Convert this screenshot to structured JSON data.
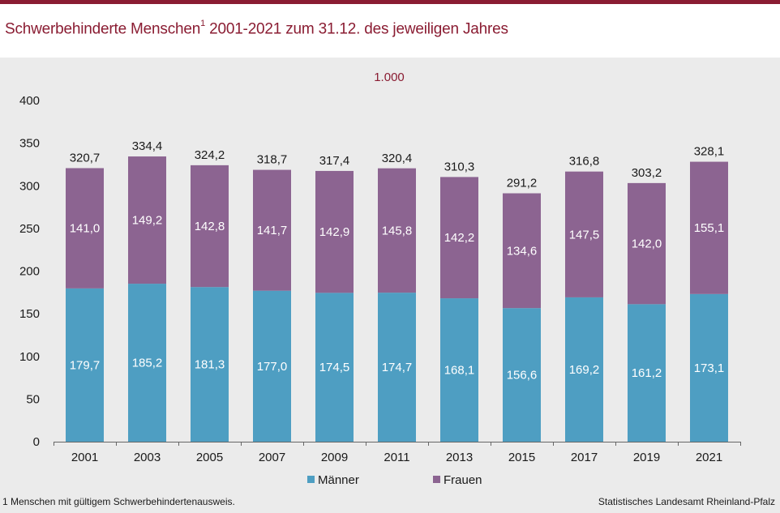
{
  "header": {
    "title_main": "Schwerbehinderte Menschen",
    "title_sup": "1",
    "title_rest": " 2001-2021 zum 31.12. des jeweiligen Jahres"
  },
  "footer": {
    "footnote": "1 Menschen mit gültigem Schwerbehindertenausweis.",
    "source": "Statistisches Landesamt Rheinland-Pfalz"
  },
  "chart_data": {
    "type": "bar",
    "stacked": true,
    "unit_label": "1.000",
    "categories": [
      "2001",
      "2003",
      "2005",
      "2007",
      "2009",
      "2011",
      "2013",
      "2015",
      "2017",
      "2019",
      "2021"
    ],
    "series": [
      {
        "name": "Männer",
        "color": "#4e9ec2",
        "values": [
          179.7,
          185.2,
          181.3,
          177.0,
          174.5,
          174.7,
          168.1,
          156.6,
          169.2,
          161.2,
          173.1
        ],
        "labels": [
          "179,7",
          "185,2",
          "181,3",
          "177,0",
          "174,5",
          "174,7",
          "168,1",
          "156,6",
          "169,2",
          "161,2",
          "173,1"
        ]
      },
      {
        "name": "Frauen",
        "color": "#8c6491",
        "values": [
          141.0,
          149.2,
          142.8,
          141.7,
          142.9,
          145.8,
          142.2,
          134.6,
          147.5,
          142.0,
          155.1
        ],
        "labels": [
          "141,0",
          "149,2",
          "142,8",
          "141,7",
          "142,9",
          "145,8",
          "142,2",
          "134,6",
          "147,5",
          "142,0",
          "155,1"
        ]
      }
    ],
    "totals": [
      320.7,
      334.4,
      324.2,
      318.7,
      317.4,
      320.4,
      310.3,
      291.2,
      316.8,
      303.2,
      328.1
    ],
    "total_labels": [
      "320,7",
      "334,4",
      "324,2",
      "318,7",
      "317,4",
      "320,4",
      "310,3",
      "291,2",
      "316,8",
      "303,2",
      "328,1"
    ],
    "ylim": [
      0,
      400
    ],
    "yticks": [
      0,
      50,
      100,
      150,
      200,
      250,
      300,
      350,
      400
    ],
    "grid": false,
    "legend_position": "bottom"
  }
}
